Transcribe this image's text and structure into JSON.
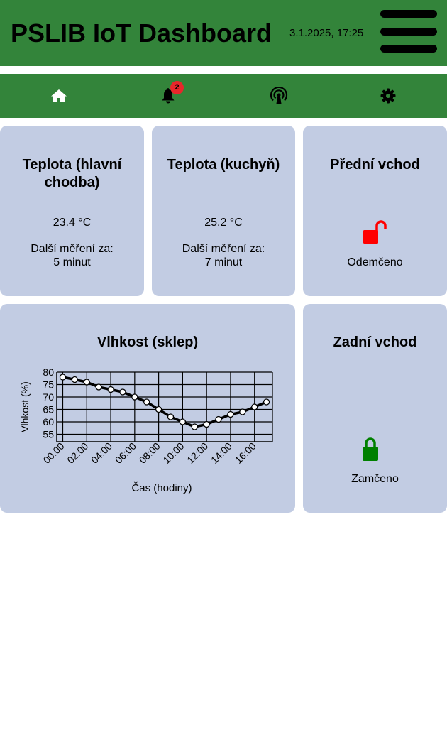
{
  "header": {
    "title": "PSLIB IoT Dashboard",
    "datetime": "3.1.2025, 17:25",
    "menu_icon": "hamburger-menu-icon"
  },
  "nav": {
    "items": [
      {
        "icon": "home-icon"
      },
      {
        "icon": "bell-icon",
        "badge": "2"
      },
      {
        "icon": "signal-tower-icon"
      },
      {
        "icon": "gear-icon"
      }
    ]
  },
  "colors": {
    "header_bg": "#33843a",
    "card_bg": "#c2cce3",
    "unlocked": "#ff0000",
    "locked": "#008000",
    "badge": "#e8262b"
  },
  "cards": {
    "temp_main": {
      "title": "Teplota (hlavní chodba)",
      "value": "23.4 °C",
      "next_label": "Další měření za:",
      "next_value": "5 minut"
    },
    "temp_kitchen": {
      "title": "Teplota (kuchyň)",
      "value": "25.2 °C",
      "next_label": "Další měření za:",
      "next_value": "7 minut"
    },
    "front_door": {
      "title": "Přední vchod",
      "status": "Odemčeno",
      "icon": "lock-open-icon"
    },
    "back_door": {
      "title": "Zadní vchod",
      "status": "Zamčeno",
      "icon": "lock-closed-icon"
    },
    "humidity": {
      "title": "Vlhkost (sklep)"
    }
  },
  "chart_data": {
    "type": "line",
    "title": "Vlhkost (sklep)",
    "xlabel": "Čas (hodiny)",
    "ylabel": "Vlhkost (%)",
    "x": [
      "00:00",
      "01:00",
      "02:00",
      "03:00",
      "04:00",
      "05:00",
      "06:00",
      "07:00",
      "08:00",
      "09:00",
      "10:00",
      "11:00",
      "12:00",
      "13:00",
      "14:00",
      "15:00",
      "16:00",
      "17:00"
    ],
    "x_tick_labels": [
      "00:00",
      "02:00",
      "04:00",
      "06:00",
      "08:00",
      "10:00",
      "12:00",
      "14:00",
      "16:00"
    ],
    "y_ticks": [
      55,
      60,
      65,
      70,
      75,
      80
    ],
    "series": [
      {
        "values": [
          78,
          77,
          76,
          74,
          73,
          72,
          70,
          68,
          65,
          62,
          60,
          58,
          59,
          61,
          63,
          64,
          66,
          68
        ]
      }
    ],
    "ylim": [
      52,
      80
    ],
    "grid": true
  }
}
